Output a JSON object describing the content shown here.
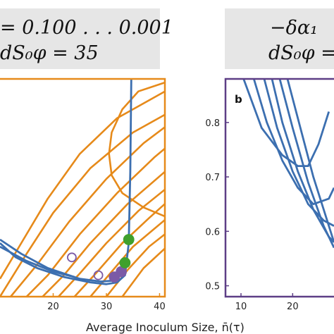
{
  "headers": {
    "left_line1": "= 0.100 . . . 0.001",
    "left_line2": "dS₀φ = 35",
    "right_line1": "−δα₁",
    "right_line2": "dS₀φ ="
  },
  "x_axis_label": "Average Inoculum Size, n̄(τ)",
  "chart_data": [
    {
      "type": "line",
      "panel": "a (partially cropped)",
      "xlim": [
        10,
        41
      ],
      "xticks": [
        20,
        30,
        40
      ],
      "frame_color": "#e68a1a",
      "series": [
        {
          "color": "#e68a1a",
          "kind": "contour family",
          "curves": [
            [
              [
                10,
                0.1
              ],
              [
                14,
                0.3
              ],
              [
                19,
                0.55
              ],
              [
                25,
                0.8
              ],
              [
                32,
                1.0
              ],
              [
                41,
                1.15
              ]
            ],
            [
              [
                10,
                0.0
              ],
              [
                15,
                0.24
              ],
              [
                20,
                0.47
              ],
              [
                27,
                0.72
              ],
              [
                35,
                0.92
              ],
              [
                41,
                1.02
              ]
            ],
            [
              [
                12,
                0.0
              ],
              [
                17,
                0.18
              ],
              [
                23,
                0.42
              ],
              [
                30,
                0.66
              ],
              [
                37,
                0.86
              ],
              [
                41,
                0.95
              ]
            ],
            [
              [
                15,
                0.0
              ],
              [
                19,
                0.12
              ],
              [
                25,
                0.35
              ],
              [
                32,
                0.58
              ],
              [
                39,
                0.78
              ],
              [
                41,
                0.83
              ]
            ],
            [
              [
                18,
                0.0
              ],
              [
                22,
                0.12
              ],
              [
                27,
                0.3
              ],
              [
                34,
                0.52
              ],
              [
                41,
                0.7
              ]
            ],
            [
              [
                21,
                0.0
              ],
              [
                25,
                0.13
              ],
              [
                30,
                0.3
              ],
              [
                36,
                0.48
              ],
              [
                41,
                0.6
              ]
            ],
            [
              [
                24,
                0.0
              ],
              [
                28,
                0.13
              ],
              [
                33,
                0.3
              ],
              [
                38,
                0.44
              ],
              [
                41,
                0.52
              ]
            ],
            [
              [
                27,
                0.0
              ],
              [
                31,
                0.14
              ],
              [
                35,
                0.28
              ],
              [
                39,
                0.38
              ],
              [
                41,
                0.43
              ]
            ],
            [
              [
                30,
                0.0
              ],
              [
                34,
                0.15
              ],
              [
                38,
                0.28
              ],
              [
                41,
                0.35
              ]
            ],
            [
              [
                33,
                0.0
              ],
              [
                37,
                0.16
              ],
              [
                41,
                0.27
              ]
            ]
          ]
        },
        {
          "color": "#e68a1a",
          "kind": "bent curve",
          "curves": [
            [
              [
                41,
                1.2
              ],
              [
                36,
                1.15
              ],
              [
                33,
                1.05
              ],
              [
                31,
                0.92
              ],
              [
                30.5,
                0.8
              ],
              [
                31,
                0.68
              ],
              [
                33,
                0.58
              ],
              [
                37,
                0.5
              ],
              [
                41,
                0.45
              ]
            ]
          ]
        },
        {
          "color": "#3c6fb0",
          "kind": "trajectory",
          "curves": [
            [
              [
                10,
                0.3
              ],
              [
                13,
                0.22
              ],
              [
                17,
                0.16
              ],
              [
                22,
                0.11
              ],
              [
                27,
                0.08
              ],
              [
                30,
                0.07
              ],
              [
                32,
                0.08
              ],
              [
                33.5,
                0.12
              ],
              [
                34.2,
                0.3
              ],
              [
                34.5,
                0.7
              ],
              [
                34.7,
                1.25
              ]
            ],
            [
              [
                10,
                0.32
              ],
              [
                14,
                0.24
              ],
              [
                19,
                0.16
              ],
              [
                25,
                0.1
              ],
              [
                29,
                0.085
              ],
              [
                31.5,
                0.09
              ]
            ],
            [
              [
                10,
                0.28
              ],
              [
                15,
                0.2
              ],
              [
                20,
                0.14
              ],
              [
                24,
                0.11
              ]
            ]
          ]
        }
      ],
      "markers": [
        {
          "x": 23.5,
          "y": 0.22,
          "color": "#7b5aa6",
          "style": "open"
        },
        {
          "x": 28.5,
          "y": 0.12,
          "color": "#7b5aa6",
          "style": "open"
        },
        {
          "x": 31.5,
          "y": 0.11,
          "color": "#7b5aa6",
          "style": "filled"
        },
        {
          "x": 32.8,
          "y": 0.14,
          "color": "#7b5aa6",
          "style": "filled"
        },
        {
          "x": 33.5,
          "y": 0.19,
          "color": "#3fa02c",
          "style": "filled"
        },
        {
          "x": 34.2,
          "y": 0.32,
          "color": "#3fa02c",
          "style": "filled"
        }
      ]
    },
    {
      "type": "line",
      "panel": "b",
      "panel_label": "b",
      "xlim": [
        7,
        28
      ],
      "ylim": [
        0.48,
        0.88
      ],
      "xticks": [
        10,
        20
      ],
      "yticks": [
        0.5,
        0.6,
        0.7,
        0.8
      ],
      "ytick_labels": [
        "0.5",
        "0.6",
        "0.7",
        "0.8"
      ],
      "frame_color": "#5d3e86",
      "series": [
        {
          "color": "#3c6fb0",
          "curves": [
            [
              [
                10.5,
                0.88
              ],
              [
                14,
                0.79
              ],
              [
                18,
                0.74
              ],
              [
                21,
                0.72
              ],
              [
                23,
                0.72
              ],
              [
                25,
                0.76
              ],
              [
                27,
                0.82
              ]
            ],
            [
              [
                12.5,
                0.88
              ],
              [
                15,
                0.8
              ],
              [
                18,
                0.73
              ],
              [
                21,
                0.68
              ],
              [
                24,
                0.65
              ],
              [
                27,
                0.66
              ],
              [
                28,
                0.68
              ]
            ],
            [
              [
                14.5,
                0.88
              ],
              [
                17,
                0.79
              ],
              [
                20,
                0.71
              ],
              [
                23,
                0.65
              ],
              [
                26,
                0.62
              ],
              [
                28,
                0.61
              ]
            ],
            [
              [
                16,
                0.88
              ],
              [
                18,
                0.8
              ],
              [
                21,
                0.71
              ],
              [
                24,
                0.64
              ],
              [
                27,
                0.59
              ],
              [
                28,
                0.58
              ]
            ],
            [
              [
                17.5,
                0.88
              ],
              [
                20,
                0.79
              ],
              [
                23,
                0.69
              ],
              [
                26,
                0.61
              ],
              [
                28,
                0.57
              ]
            ],
            [
              [
                19,
                0.88
              ],
              [
                21.5,
                0.79
              ],
              [
                24,
                0.7
              ],
              [
                27,
                0.61
              ],
              [
                28,
                0.58
              ]
            ]
          ]
        }
      ]
    }
  ]
}
